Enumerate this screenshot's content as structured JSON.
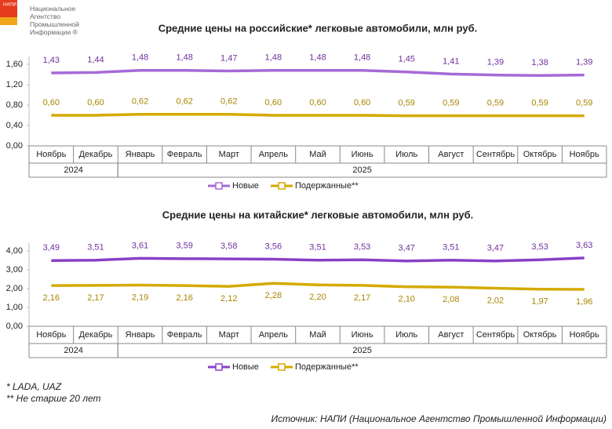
{
  "header": {
    "logo": "НАПИ",
    "org": "Национальное Агентство Промышленной Информации ®"
  },
  "chart_data": [
    {
      "type": "line",
      "title": "Средние цены на российские* легковые автомобили, млн руб.",
      "categories": [
        "Ноябрь",
        "Декабрь",
        "Январь",
        "Февраль",
        "Март",
        "Апрель",
        "Май",
        "Июнь",
        "Июль",
        "Август",
        "Сентябрь",
        "Октябрь",
        "Ноябрь"
      ],
      "x_groups": [
        {
          "label": "2024",
          "count": 2
        },
        {
          "label": "2025",
          "count": 11
        }
      ],
      "series": [
        {
          "name": "Новые",
          "color": "#a56ad6",
          "label_color": "#7030a0",
          "label_position": "above",
          "values": [
            1.43,
            1.44,
            1.48,
            1.48,
            1.47,
            1.48,
            1.48,
            1.48,
            1.45,
            1.41,
            1.39,
            1.38,
            1.39
          ],
          "value_labels": [
            "1,43",
            "1,44",
            "1,48",
            "1,48",
            "1,47",
            "1,48",
            "1,48",
            "1,48",
            "1,45",
            "1,41",
            "1,39",
            "1,38",
            "1,39"
          ]
        },
        {
          "name": "Подержанные**",
          "color": "#d4aa00",
          "label_color": "#a88600",
          "label_position": "above",
          "values": [
            0.6,
            0.6,
            0.62,
            0.62,
            0.62,
            0.6,
            0.6,
            0.6,
            0.59,
            0.59,
            0.59,
            0.59,
            0.59
          ],
          "value_labels": [
            "0,60",
            "0,60",
            "0,62",
            "0,62",
            "0,62",
            "0,60",
            "0,60",
            "0,60",
            "0,59",
            "0,59",
            "0,59",
            "0,59",
            "0,59"
          ]
        }
      ],
      "ylim": [
        0,
        1.6
      ],
      "yticks": [
        {
          "value": 0,
          "label": "0,00"
        },
        {
          "value": 0.4,
          "label": "0,40"
        },
        {
          "value": 0.8,
          "label": "0,80"
        },
        {
          "value": 1.2,
          "label": "1,20"
        },
        {
          "value": 1.6,
          "label": "1,60"
        }
      ]
    },
    {
      "type": "line",
      "title": "Средние цены на китайские* легковые автомобили, млн руб.",
      "categories": [
        "Ноябрь",
        "Декабрь",
        "Январь",
        "Февраль",
        "Март",
        "Апрель",
        "Май",
        "Июнь",
        "Июль",
        "Август",
        "Сентябрь",
        "Октябрь",
        "Ноябрь"
      ],
      "x_groups": [
        {
          "label": "2024",
          "count": 2
        },
        {
          "label": "2025",
          "count": 11
        }
      ],
      "series": [
        {
          "name": "Новые",
          "color": "#8a40c6",
          "label_color": "#7030a0",
          "label_position": "above",
          "values": [
            3.49,
            3.51,
            3.61,
            3.59,
            3.58,
            3.56,
            3.51,
            3.53,
            3.47,
            3.51,
            3.47,
            3.53,
            3.63
          ],
          "value_labels": [
            "3,49",
            "3,51",
            "3,61",
            "3,59",
            "3,58",
            "3,56",
            "3,51",
            "3,53",
            "3,47",
            "3,51",
            "3,47",
            "3,53",
            "3,63"
          ]
        },
        {
          "name": "Подержанные**",
          "color": "#d4aa00",
          "label_color": "#a88600",
          "label_position": "below",
          "values": [
            2.16,
            2.17,
            2.19,
            2.16,
            2.12,
            2.28,
            2.2,
            2.17,
            2.1,
            2.08,
            2.02,
            1.97,
            1.96
          ],
          "value_labels": [
            "2,16",
            "2,17",
            "2,19",
            "2,16",
            "2,12",
            "2,28",
            "2,20",
            "2,17",
            "2,10",
            "2,08",
            "2,02",
            "1,97",
            "1,96"
          ]
        }
      ],
      "ylim": [
        0,
        4
      ],
      "yticks": [
        {
          "value": 0,
          "label": "0,00"
        },
        {
          "value": 1,
          "label": "1,00"
        },
        {
          "value": 2,
          "label": "2,00"
        },
        {
          "value": 3,
          "label": "3,00"
        },
        {
          "value": 4,
          "label": "4,00"
        }
      ]
    }
  ],
  "notes": [
    "* LADA, UAZ",
    "** Не старше 20 лет"
  ],
  "source": "Источник: НАПИ (Национальное Агентство Промышленной Информации)"
}
